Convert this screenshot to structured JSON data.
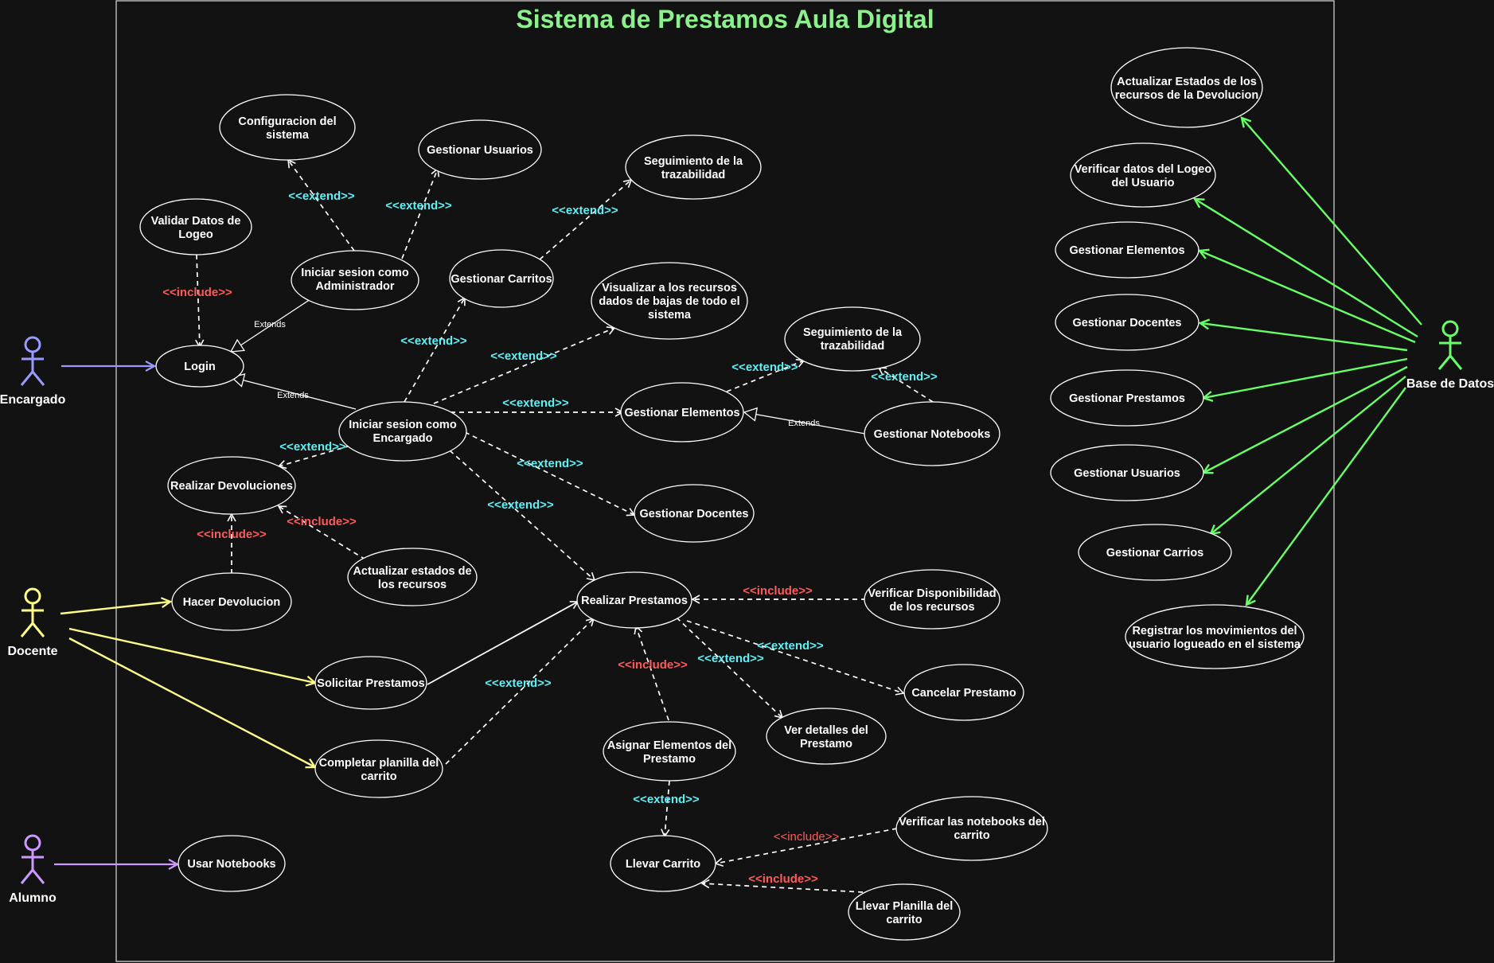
{
  "title": "Sistema de Prestamos Aula Digital",
  "colors": {
    "background": "#121212",
    "title": "#8cf08c",
    "extend_label": "#5ff0f5",
    "include_label": "#ff5a5a",
    "encargado": "#9999ff",
    "docente": "#ffff88",
    "alumno": "#cc99ff",
    "base_de_datos": "#66ff66"
  },
  "actors": {
    "encargado": "Encargado",
    "docente": "Docente",
    "alumno": "Alumno",
    "base_de_datos": "Base de Datos"
  },
  "use_cases": {
    "config_sistema": "Configuracion del sistema",
    "gestionar_usuarios": "Gestionar Usuarios",
    "seguimiento_traz_1": "Seguimiento de la trazabilidad",
    "validar_logeo": "Validar Datos de Logeo",
    "sesion_admin": "Iniciar sesion como Administrador",
    "gestionar_carritos": "Gestionar Carritos",
    "visualizar_bajas": "Visualizar a los recursos dados de bajas de todo el sistema",
    "login": "Login",
    "seguimiento_traz_2": "Seguimiento de la trazabilidad",
    "sesion_encargado": "Iniciar sesion como Encargado",
    "gestionar_elementos": "Gestionar Elementos",
    "gestionar_notebooks": "Gestionar Notebooks",
    "realizar_devoluciones": "Realizar Devoluciones",
    "gestionar_docentes": "Gestionar Docentes",
    "actualizar_estados": "Actualizar estados de los recursos",
    "hacer_devolucion": "Hacer Devolucion",
    "realizar_prestamos": "Realizar Prestamos",
    "verificar_disponibilidad": "Verificar Disponibilidad de los recursos",
    "solicitar_prestamos": "Solicitar Prestamos",
    "cancelar_prestamo": "Cancelar Prestamo",
    "ver_detalles": "Ver detalles del Prestamo",
    "asignar_elementos": "Asignar Elementos del Prestamo",
    "completar_planilla": "Completar planilla del carrito",
    "usar_notebooks": "Usar Notebooks",
    "llevar_carrito": "Llevar Carrito",
    "verificar_notebooks": "Verificar las notebooks del carrito",
    "llevar_planilla": "Llevar Planilla del carrito",
    "db_actualizar_estados": "Actualizar Estados de los recursos de la Devolucion",
    "db_verificar_logeo": "Verificar datos del Logeo del Usuario",
    "db_gestionar_elementos": "Gestionar Elementos",
    "db_gestionar_docentes": "Gestionar Docentes",
    "db_gestionar_prestamos": "Gestionar Prestamos",
    "db_gestionar_usuarios": "Gestionar Usuarios",
    "db_gestionar_carrios": "Gestionar Carrios",
    "db_registrar_movimientos": "Registrar los movimientos del usuario logueado en el sistema"
  },
  "labels": {
    "extend": "<<extend>>",
    "include": "<<include>>",
    "extends": "Extends"
  }
}
